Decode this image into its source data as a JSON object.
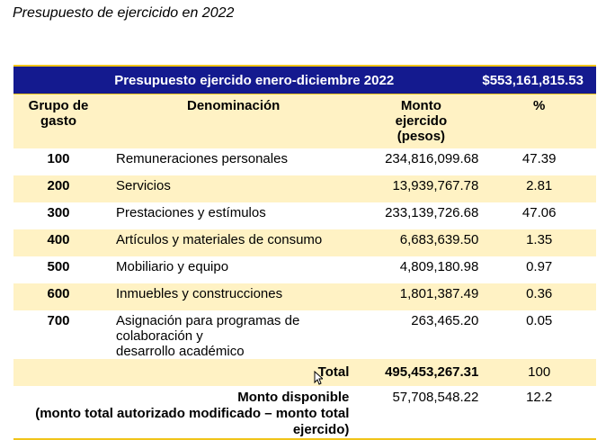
{
  "title": "Presupuesto de ejercicido en 2022",
  "header": {
    "title": "Presupuesto ejercido enero-diciembre 2022",
    "total": "$553,161,815.53"
  },
  "columns": {
    "code_line1": "Grupo de",
    "code_line2": "gasto",
    "name": "Denominación",
    "amount_line1": "Monto",
    "amount_line2": "ejercido",
    "amount_line3": "(pesos)",
    "pct": "%"
  },
  "rows": [
    {
      "code": "100",
      "name": "Remuneraciones personales",
      "amount": "234,816,099.68",
      "pct": "47.39"
    },
    {
      "code": "200",
      "name": "Servicios",
      "amount": "13,939,767.78",
      "pct": "2.81"
    },
    {
      "code": "300",
      "name": "Prestaciones y estímulos",
      "amount": "233,139,726.68",
      "pct": "47.06"
    },
    {
      "code": "400",
      "name": "Artículos y materiales de consumo",
      "amount": "6,683,639.50",
      "pct": "1.35"
    },
    {
      "code": "500",
      "name": "Mobiliario y equipo",
      "amount": "4,809,180.98",
      "pct": "0.97"
    },
    {
      "code": "600",
      "name": "Inmuebles y construcciones",
      "amount": "1,801,387.49",
      "pct": "0.36"
    },
    {
      "code": "700",
      "name_line1": "Asignación para programas de colaboración y",
      "name_line2": "desarrollo académico",
      "amount": "263,465.20",
      "pct": "0.05"
    }
  ],
  "total": {
    "label": "Total",
    "amount": "495,453,267.31",
    "pct": "100"
  },
  "available": {
    "label_line1": "Monto disponible",
    "label_line2": "(monto total autorizado modificado – monto total",
    "label_line3": "ejercido)",
    "amount": "57,708,548.22",
    "pct": "12.2"
  },
  "colors": {
    "header_bg": "#141a8f",
    "band": "#fff2c4",
    "rule": "#f0c419"
  }
}
